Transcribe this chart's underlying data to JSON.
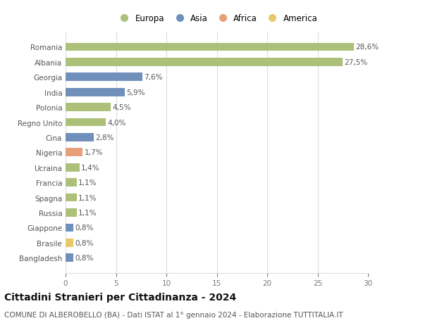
{
  "categories": [
    "Bangladesh",
    "Brasile",
    "Giappone",
    "Russia",
    "Spagna",
    "Francia",
    "Ucraina",
    "Nigeria",
    "Cina",
    "Regno Unito",
    "Polonia",
    "India",
    "Georgia",
    "Albania",
    "Romania"
  ],
  "values": [
    0.8,
    0.8,
    0.8,
    1.1,
    1.1,
    1.1,
    1.4,
    1.7,
    2.8,
    4.0,
    4.5,
    5.9,
    7.6,
    27.5,
    28.6
  ],
  "labels": [
    "0,8%",
    "0,8%",
    "0,8%",
    "1,1%",
    "1,1%",
    "1,1%",
    "1,4%",
    "1,7%",
    "2,8%",
    "4,0%",
    "4,5%",
    "5,9%",
    "7,6%",
    "27,5%",
    "28,6%"
  ],
  "colors": [
    "#7090bb",
    "#e8c96a",
    "#7090bb",
    "#adc07a",
    "#adc07a",
    "#adc07a",
    "#adc07a",
    "#e8a07a",
    "#7090bb",
    "#adc07a",
    "#adc07a",
    "#7090bb",
    "#7090bb",
    "#adc07a",
    "#adc07a"
  ],
  "legend_labels": [
    "Europa",
    "Asia",
    "Africa",
    "America"
  ],
  "legend_colors": [
    "#adc07a",
    "#7090bb",
    "#e8a07a",
    "#e8c96a"
  ],
  "title": "Cittadini Stranieri per Cittadinanza - 2024",
  "subtitle": "COMUNE DI ALBEROBELLO (BA) - Dati ISTAT al 1° gennaio 2024 - Elaborazione TUTTITALIA.IT",
  "xlim": [
    0,
    30
  ],
  "xticks": [
    0,
    5,
    10,
    15,
    20,
    25,
    30
  ],
  "background_color": "#ffffff",
  "bar_height": 0.55,
  "grid_color": "#dddddd",
  "title_fontsize": 10,
  "subtitle_fontsize": 7.5,
  "label_fontsize": 7.5,
  "tick_fontsize": 7.5,
  "legend_fontsize": 8.5
}
